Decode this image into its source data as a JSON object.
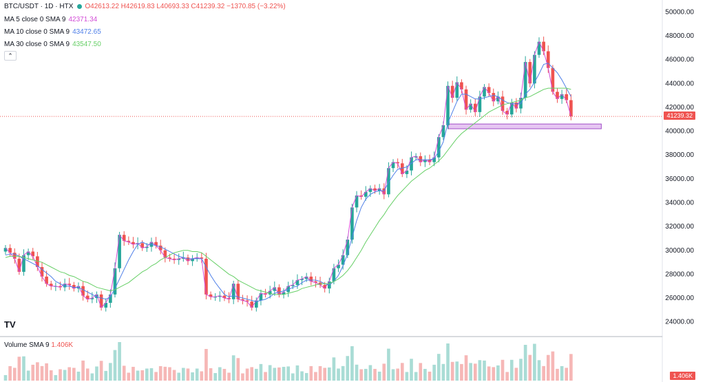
{
  "header": {
    "symbol": "BTC/USDT · 1D · HTX",
    "status_color": "#26a69a",
    "ohlc": "O42613.22 H42619.83 L40693.33 C41239.32 −1370.85 (−3.22%)",
    "ohlc_color": "#ef5350"
  },
  "indicators": [
    {
      "label": "MA 5 close 0 SMA 9",
      "value": "42371.34",
      "color": "#d24bd6"
    },
    {
      "label": "MA 10 close 0 SMA 9",
      "value": "43472.65",
      "color": "#4e7fe8"
    },
    {
      "label": "MA 30 close 0 SMA 9",
      "value": "43547.50",
      "color": "#66cf66"
    }
  ],
  "collapse_icon": "chevron-up-icon",
  "volume": {
    "label": "Volume SMA 9",
    "value": "1.406K",
    "tag": "1.406K"
  },
  "current_price": {
    "label": "41239.32",
    "value": 41239.32
  },
  "logo": "TV",
  "chart_data": {
    "type": "line",
    "title": "BTC/USDT · 1D · HTX",
    "ylim": [
      23000,
      51000
    ],
    "y_ticks": [
      24000,
      26000,
      28000,
      30000,
      32000,
      34000,
      36000,
      38000,
      40000,
      42000,
      44000,
      46000,
      48000,
      50000
    ],
    "y_tick_labels": [
      "24000.00",
      "26000.00",
      "28000.00",
      "30000.00",
      "32000.00",
      "34000.00",
      "36000.00",
      "38000.00",
      "40000.00",
      "42000.00",
      "44000.00",
      "46000.00",
      "48000.00",
      "50000.00"
    ],
    "grid": false,
    "support_zone": [
      40200,
      40600
    ],
    "series": [
      {
        "values": [
          30200,
          29800,
          29300,
          28200,
          29600,
          29900,
          29500,
          28600,
          27800,
          27200,
          27000,
          27000,
          26900,
          27200,
          27100,
          26800,
          27000,
          26200,
          25900,
          26000,
          26300,
          25200,
          25600,
          26300,
          28500,
          31300,
          30800,
          30700,
          30500,
          30600,
          30200,
          30300,
          30700,
          30400,
          30000,
          29400,
          29300,
          29200,
          29300,
          29400,
          29100,
          29300,
          29400,
          29300,
          26300,
          26100,
          26100,
          26200,
          26000,
          25900,
          27200,
          25900,
          25800,
          25700,
          25200,
          25800,
          26400,
          26300,
          26600,
          26900,
          26300,
          26500,
          27000,
          27100,
          27500,
          27600,
          27800,
          27400,
          27300,
          27100,
          26800,
          27400,
          28500,
          28800,
          29600,
          30900,
          33600,
          34600,
          34500,
          34900,
          35200,
          35000,
          35200,
          34700,
          36900,
          37400,
          37300,
          36400,
          36700,
          37800,
          37900,
          37400,
          37600,
          37400,
          37800,
          39500,
          40500,
          43800,
          42800,
          44100,
          43500,
          41800,
          42300,
          41600,
          42900,
          43700,
          43200,
          42500,
          42900,
          41700,
          41400,
          42400,
          41900,
          42800,
          45800,
          44000,
          46400,
          47500,
          46700,
          45300,
          43300,
          42700,
          43100,
          42600,
          41239
        ]
      },
      {
        "values": [
          29600,
          29700,
          29700,
          29500,
          29300,
          29100,
          28900,
          28700,
          28400,
          28100,
          27800,
          27400,
          27200,
          27000,
          27000,
          26900,
          26900,
          26700,
          26500,
          26300,
          26100,
          26000,
          25900,
          26100,
          26800,
          27600,
          28400,
          29200,
          29900,
          30500,
          30700,
          30500,
          30500,
          30400,
          30300,
          30100,
          29900,
          29700,
          29500,
          29400,
          29300,
          29300,
          29300,
          29300,
          28600,
          27900,
          27300,
          26800,
          26300,
          26100,
          26200,
          26100,
          26000,
          25900,
          25800,
          25700,
          25800,
          25900,
          26100,
          26400,
          26500,
          26600,
          26700,
          26900,
          27000,
          27300,
          27500,
          27500,
          27500,
          27400,
          27200,
          27100,
          27400,
          27900,
          28700,
          29700,
          31100,
          32500,
          33600,
          34300,
          34700,
          34900,
          35000,
          35000,
          35700,
          36300,
          36800,
          36900,
          37000,
          37300,
          37600,
          37600,
          37600,
          37600,
          37700,
          38300,
          39100,
          40700,
          41600,
          42500,
          43100,
          43100,
          42900,
          42700,
          42700,
          42800,
          42900,
          43000,
          42900,
          42600,
          42400,
          42300,
          42300,
          42300,
          43100,
          43500,
          44100,
          44800,
          45600,
          45700,
          45300,
          44900,
          44300,
          43600,
          42900
        ]
      },
      {
        "values": [
          29400,
          29500,
          29500,
          29500,
          29400,
          29300,
          29200,
          29100,
          29000,
          28800,
          28600,
          28400,
          28200,
          28100,
          27900,
          27800,
          27600,
          27400,
          27300,
          27100,
          26900,
          26800,
          26700,
          26600,
          26700,
          26900,
          27100,
          27300,
          27600,
          27900,
          28200,
          28400,
          28700,
          28900,
          29200,
          29400,
          29600,
          29800,
          29900,
          30000,
          30000,
          29900,
          29900,
          29800,
          29500,
          29200,
          28900,
          28600,
          28300,
          28000,
          27800,
          27500,
          27300,
          27100,
          26900,
          26700,
          26600,
          26500,
          26400,
          26300,
          26300,
          26300,
          26400,
          26500,
          26600,
          26800,
          26900,
          27000,
          27100,
          27200,
          27200,
          27200,
          27400,
          27600,
          27900,
          28300,
          28800,
          29400,
          30000,
          30700,
          31300,
          31900,
          32500,
          33000,
          33600,
          34100,
          34600,
          35000,
          35400,
          35800,
          36100,
          36400,
          36700,
          36900,
          37200,
          37500,
          37900,
          38400,
          38900,
          39400,
          39800,
          40100,
          40400,
          40700,
          41000,
          41300,
          41600,
          41800,
          42000,
          42200,
          42300,
          42400,
          42500,
          42600,
          42800,
          42900,
          43100,
          43300,
          43500,
          43600,
          43600,
          43600,
          43600,
          43600,
          43500
        ]
      }
    ]
  }
}
